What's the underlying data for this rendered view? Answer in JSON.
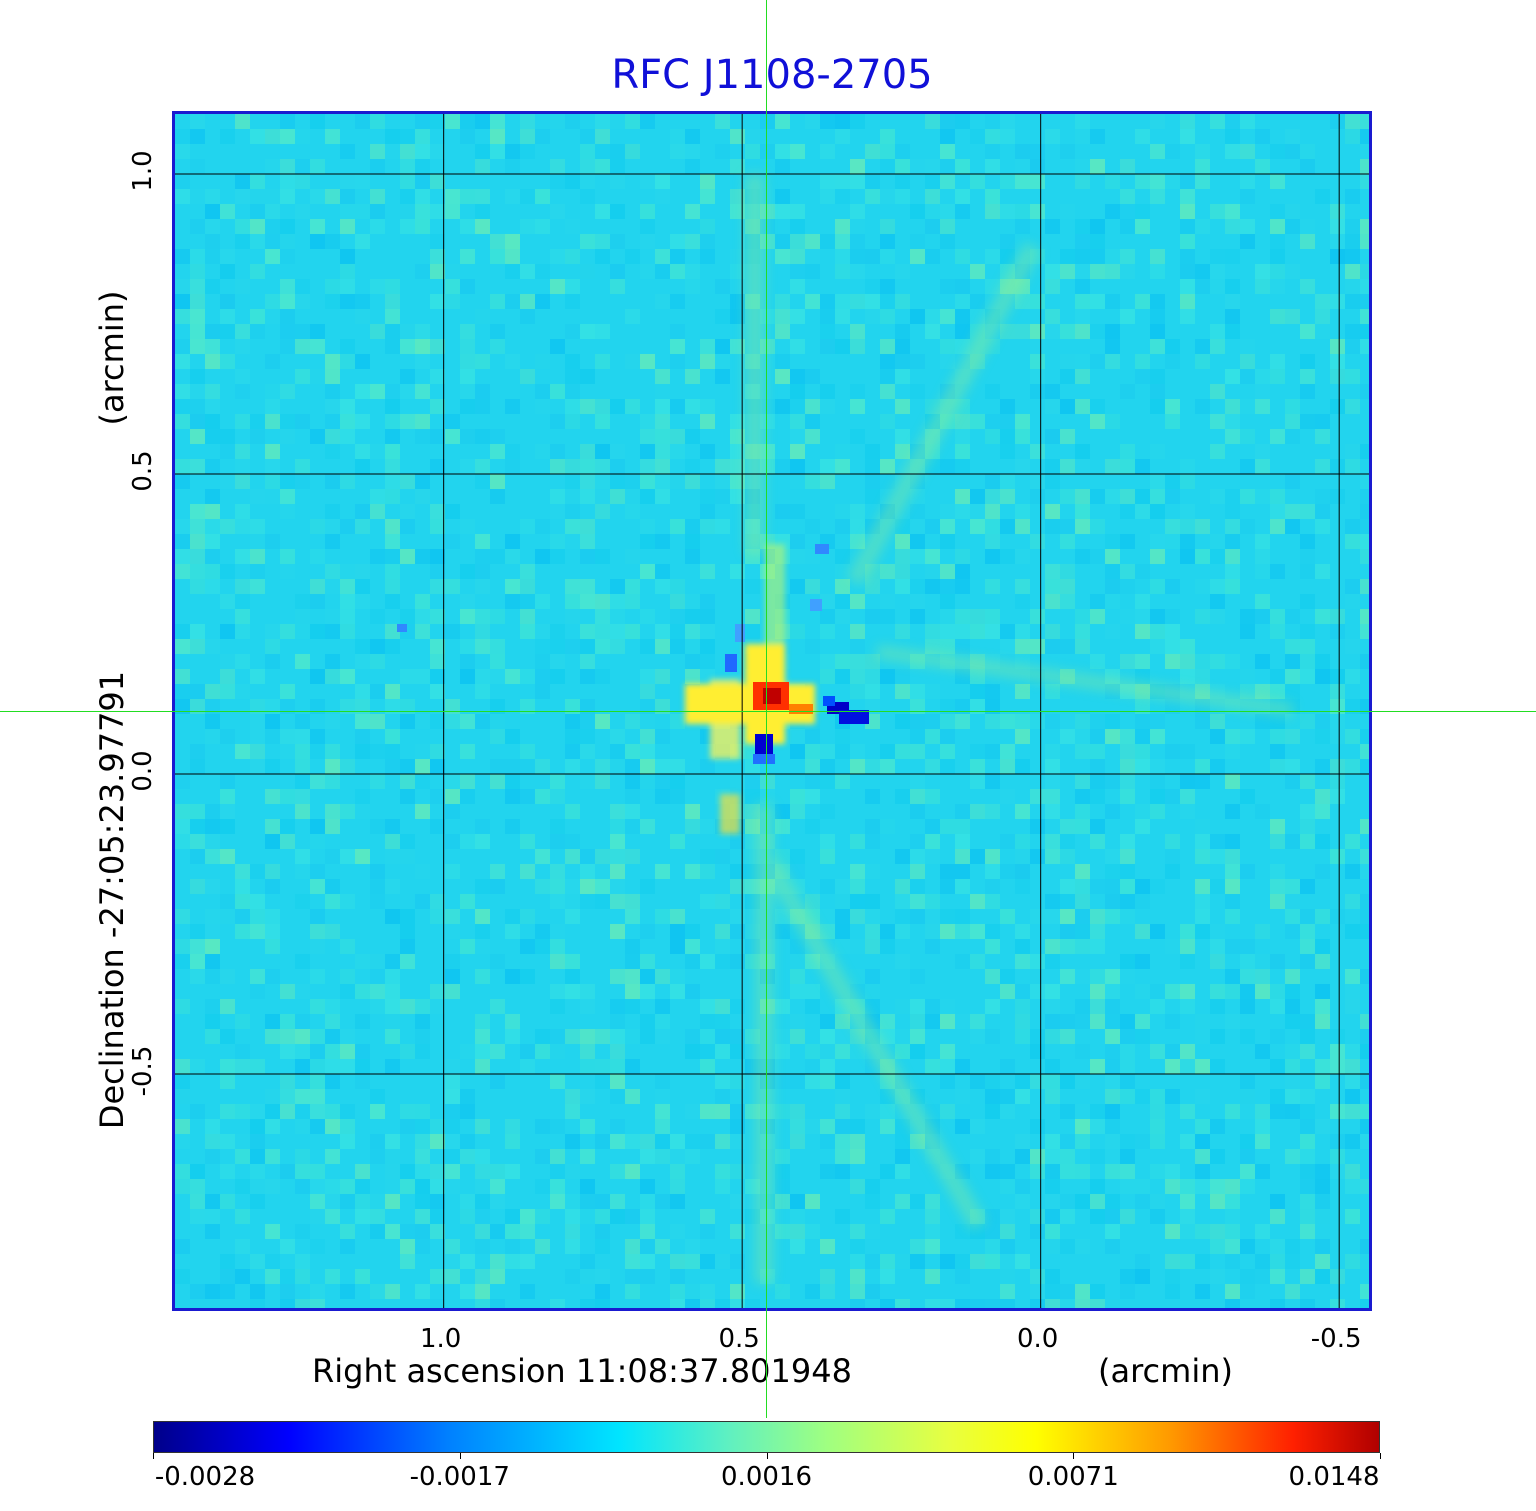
{
  "chart_data": {
    "type": "heatmap",
    "title": "RFC J1108-2705",
    "xlabel": "Right ascension  11:08:37.801948",
    "xunit": "(arcmin)",
    "ylabel": "Declination  -27:05:23.97791",
    "yunit": "(arcmin)",
    "x_ticks": [
      "1.0",
      "0.5",
      "0.0",
      "-0.5"
    ],
    "y_ticks": [
      "1.0",
      "0.5",
      "0.0",
      "-0.5"
    ],
    "xlim": [
      1.45,
      -0.56
    ],
    "ylim": [
      -0.9,
      1.1
    ],
    "grid": true,
    "colorbar": {
      "ticks": [
        "-0.0028",
        "-0.0017",
        "0.0016",
        "0.0071",
        "0.0148"
      ],
      "colormap": "jet"
    },
    "crosshair": {
      "x": 0.455,
      "y": 0.1
    }
  },
  "colors": {
    "title": "#1010d8",
    "frame": "#1a1ad0",
    "crosshair": "#22dd22",
    "background_level": "#22d4ee"
  }
}
